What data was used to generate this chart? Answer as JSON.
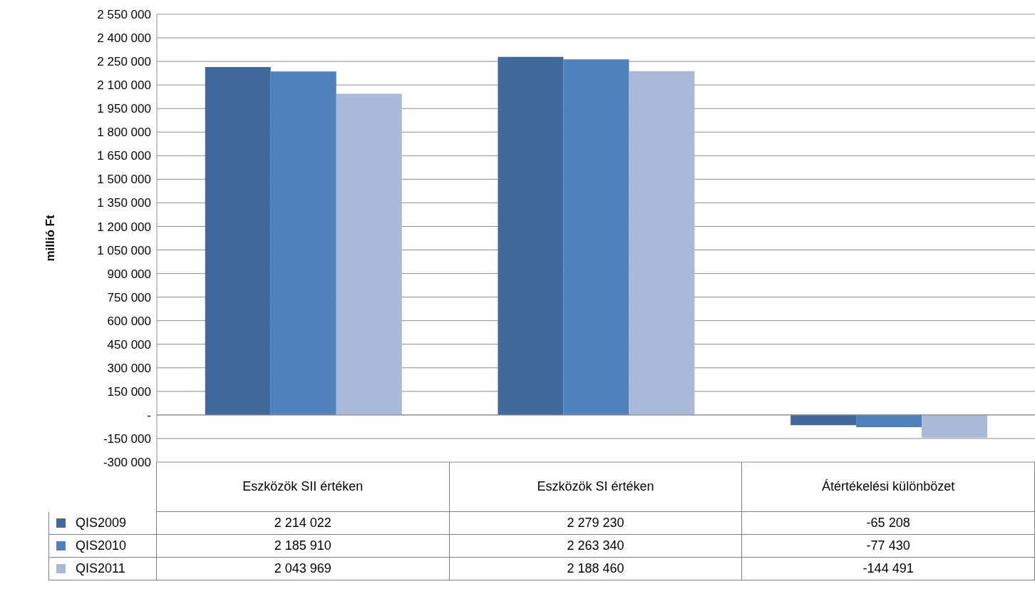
{
  "chart_data": {
    "type": "bar",
    "ylabel": "millió Ft",
    "categories": [
      "Eszközök SII értéken",
      "Eszközök SI értéken",
      "Átértékelési különbözet"
    ],
    "series": [
      {
        "name": "QIS2009",
        "color": "#3f6a9b",
        "values": [
          2214022,
          2279230,
          -65208
        ]
      },
      {
        "name": "QIS2010",
        "color": "#4f81bd",
        "values": [
          2185910,
          2263340,
          -77430
        ]
      },
      {
        "name": "QIS2011",
        "color": "#a9bad8",
        "values": [
          2043969,
          2188460,
          -144491
        ]
      }
    ],
    "ylim": [
      -300000,
      2550000
    ],
    "yticks": [
      {
        "value": -300000,
        "label": "-300 000"
      },
      {
        "value": -150000,
        "label": "-150 000"
      },
      {
        "value": 0,
        "label": "-"
      },
      {
        "value": 150000,
        "label": "150 000"
      },
      {
        "value": 300000,
        "label": "300 000"
      },
      {
        "value": 450000,
        "label": "450 000"
      },
      {
        "value": 600000,
        "label": "600 000"
      },
      {
        "value": 750000,
        "label": "750 000"
      },
      {
        "value": 900000,
        "label": "900 000"
      },
      {
        "value": 1050000,
        "label": "1 050 000"
      },
      {
        "value": 1200000,
        "label": "1 200 000"
      },
      {
        "value": 1350000,
        "label": "1 350 000"
      },
      {
        "value": 1500000,
        "label": "1 500 000"
      },
      {
        "value": 1650000,
        "label": "1 650 000"
      },
      {
        "value": 1800000,
        "label": "1 800 000"
      },
      {
        "value": 1950000,
        "label": "1 950 000"
      },
      {
        "value": 2100000,
        "label": "2 100 000"
      },
      {
        "value": 2250000,
        "label": "2 250 000"
      },
      {
        "value": 2400000,
        "label": "2 400 000"
      },
      {
        "value": 2550000,
        "label": "2 550 000"
      }
    ],
    "grid": "y",
    "legend": "bottom left",
    "data_labels": true
  }
}
